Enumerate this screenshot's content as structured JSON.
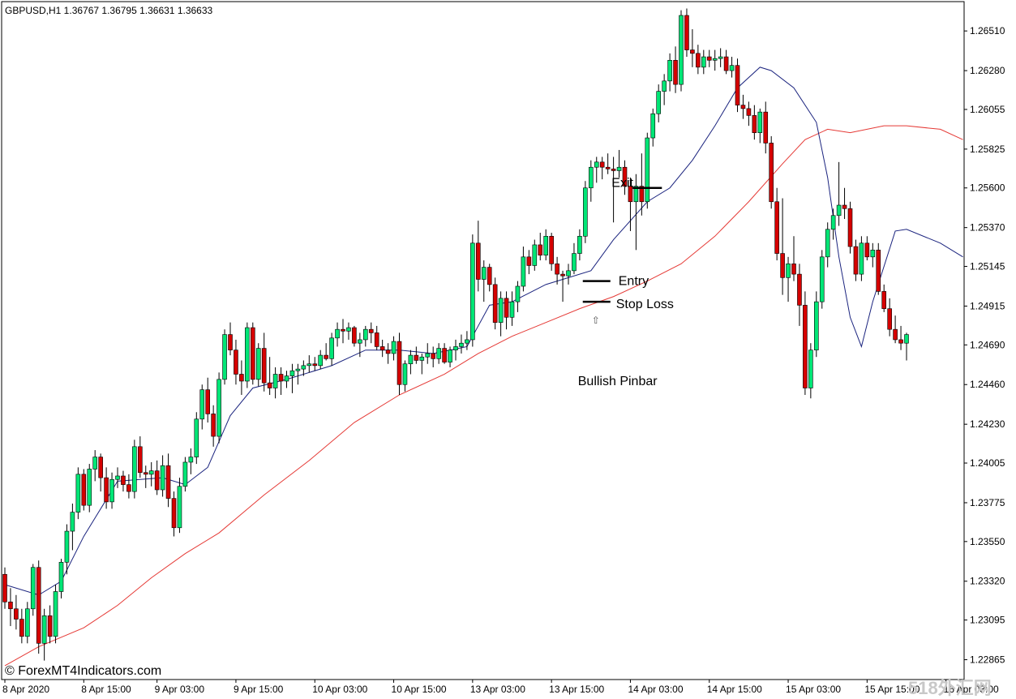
{
  "window": {
    "header": "GBPUSD,H1  1.36767 1.36795 1.36631 1.36633",
    "watermark": "© ForexMT4Indicators.com",
    "corner_watermark": "518外汇网"
  },
  "colors": {
    "background": "#ffffff",
    "bull": "#00e676",
    "bear": "#d50000",
    "wick": "#000000",
    "ma_fast": "#1a237e",
    "ma_slow": "#e53935"
  },
  "chart_data": {
    "type": "candlestick",
    "symbol": "GBPUSD",
    "timeframe": "H1",
    "ylim": [
      1.2275,
      1.2668
    ],
    "y_ticks": [
      "1.26510",
      "1.26280",
      "1.26055",
      "1.25825",
      "1.25600",
      "1.25370",
      "1.25145",
      "1.24915",
      "1.24690",
      "1.24460",
      "1.24230",
      "1.24005",
      "1.23775",
      "1.23550",
      "1.23320",
      "1.23095",
      "1.22865"
    ],
    "x_ticks": [
      {
        "label": "8 Apr 2020",
        "index": 0
      },
      {
        "label": "8 Apr 15:00",
        "index": 14
      },
      {
        "label": "9 Apr 03:00",
        "index": 27
      },
      {
        "label": "9 Apr 15:00",
        "index": 41
      },
      {
        "label": "10 Apr 03:00",
        "index": 55
      },
      {
        "label": "10 Apr 15:00",
        "index": 69
      },
      {
        "label": "13 Apr 03:00",
        "index": 83
      },
      {
        "label": "13 Apr 15:00",
        "index": 97
      },
      {
        "label": "14 Apr 03:00",
        "index": 111
      },
      {
        "label": "14 Apr 15:00",
        "index": 125
      },
      {
        "label": "15 Apr 03:00",
        "index": 139
      },
      {
        "label": "15 Apr 15:00",
        "index": 153
      },
      {
        "label": "16 Apr 03:00",
        "index": 167
      }
    ],
    "candles": [
      [
        1.2336,
        1.234,
        1.2316,
        1.232
      ],
      [
        1.232,
        1.2328,
        1.2306,
        1.2316
      ],
      [
        1.2316,
        1.2324,
        1.2304,
        1.231
      ],
      [
        1.231,
        1.2316,
        1.2296,
        1.23
      ],
      [
        1.23,
        1.232,
        1.2296,
        1.2316
      ],
      [
        1.2316,
        1.2342,
        1.2312,
        1.234
      ],
      [
        1.234,
        1.2344,
        1.229,
        1.2296
      ],
      [
        1.2296,
        1.2316,
        1.2286,
        1.2312
      ],
      [
        1.2312,
        1.2318,
        1.2296,
        1.23
      ],
      [
        1.23,
        1.233,
        1.2296,
        1.2326
      ],
      [
        1.2326,
        1.2345,
        1.2322,
        1.2343
      ],
      [
        1.2343,
        1.2365,
        1.2336,
        1.2361
      ],
      [
        1.2361,
        1.2377,
        1.235,
        1.2372
      ],
      [
        1.2372,
        1.2398,
        1.2368,
        1.2394
      ],
      [
        1.2394,
        1.2397,
        1.2373,
        1.2376
      ],
      [
        1.2376,
        1.24,
        1.2372,
        1.2397
      ],
      [
        1.2397,
        1.2408,
        1.239,
        1.2404
      ],
      [
        1.2404,
        1.2406,
        1.2384,
        1.2392
      ],
      [
        1.2392,
        1.2398,
        1.2374,
        1.2378
      ],
      [
        1.2378,
        1.2395,
        1.2374,
        1.2391
      ],
      [
        1.2391,
        1.2398,
        1.2386,
        1.2393
      ],
      [
        1.2393,
        1.2396,
        1.2384,
        1.2388
      ],
      [
        1.2388,
        1.2394,
        1.238,
        1.2384
      ],
      [
        1.2384,
        1.2414,
        1.238,
        1.241
      ],
      [
        1.241,
        1.2416,
        1.2392,
        1.2395
      ],
      [
        1.2395,
        1.2399,
        1.2386,
        1.2394
      ],
      [
        1.2394,
        1.2401,
        1.2387,
        1.2396
      ],
      [
        1.2396,
        1.2402,
        1.2382,
        1.2385
      ],
      [
        1.2385,
        1.2405,
        1.2381,
        1.2399
      ],
      [
        1.2399,
        1.2406,
        1.2375,
        1.238
      ],
      [
        1.238,
        1.2384,
        1.2358,
        1.2363
      ],
      [
        1.2363,
        1.2392,
        1.236,
        1.2387
      ],
      [
        1.2387,
        1.2404,
        1.2384,
        1.2401
      ],
      [
        1.2401,
        1.2409,
        1.2394,
        1.2404
      ],
      [
        1.2404,
        1.243,
        1.24,
        1.2426
      ],
      [
        1.2426,
        1.2446,
        1.242,
        1.2443
      ],
      [
        1.2443,
        1.245,
        1.2424,
        1.2429
      ],
      [
        1.2429,
        1.2434,
        1.241,
        1.2416
      ],
      [
        1.2416,
        1.2453,
        1.2412,
        1.2449
      ],
      [
        1.2449,
        1.2478,
        1.2446,
        1.2475
      ],
      [
        1.2475,
        1.2482,
        1.2463,
        1.2466
      ],
      [
        1.2466,
        1.2472,
        1.2446,
        1.2452
      ],
      [
        1.2452,
        1.246,
        1.244,
        1.2448
      ],
      [
        1.2448,
        1.2482,
        1.2444,
        1.2479
      ],
      [
        1.2479,
        1.2482,
        1.2446,
        1.2449
      ],
      [
        1.2449,
        1.247,
        1.2445,
        1.2467
      ],
      [
        1.2467,
        1.2476,
        1.2442,
        1.2447
      ],
      [
        1.2447,
        1.2462,
        1.244,
        1.2444
      ],
      [
        1.2444,
        1.2456,
        1.2438,
        1.2452
      ],
      [
        1.2452,
        1.2456,
        1.244,
        1.2448
      ],
      [
        1.2448,
        1.2454,
        1.2444,
        1.2451
      ],
      [
        1.2451,
        1.2458,
        1.2441,
        1.2454
      ],
      [
        1.2454,
        1.2458,
        1.2446,
        1.2455
      ],
      [
        1.2455,
        1.246,
        1.2451,
        1.2457
      ],
      [
        1.2457,
        1.2463,
        1.2453,
        1.2458
      ],
      [
        1.2458,
        1.2462,
        1.2454,
        1.2457
      ],
      [
        1.2457,
        1.2466,
        1.2455,
        1.2463
      ],
      [
        1.2463,
        1.247,
        1.246,
        1.2461
      ],
      [
        1.2461,
        1.2476,
        1.2457,
        1.2473
      ],
      [
        1.2473,
        1.2482,
        1.2468,
        1.2478
      ],
      [
        1.2478,
        1.2484,
        1.247,
        1.2477
      ],
      [
        1.2477,
        1.2482,
        1.2472,
        1.2479
      ],
      [
        1.2479,
        1.248,
        1.2468,
        1.247
      ],
      [
        1.247,
        1.2476,
        1.2462,
        1.2472
      ],
      [
        1.2472,
        1.248,
        1.2468,
        1.2478
      ],
      [
        1.2478,
        1.2482,
        1.247,
        1.2476
      ],
      [
        1.2476,
        1.248,
        1.2466,
        1.2468
      ],
      [
        1.2468,
        1.2472,
        1.2462,
        1.2466
      ],
      [
        1.2466,
        1.247,
        1.2458,
        1.2464
      ],
      [
        1.2464,
        1.2474,
        1.246,
        1.2471
      ],
      [
        1.2471,
        1.2476,
        1.244,
        1.2446
      ],
      [
        1.2446,
        1.246,
        1.2442,
        1.2458
      ],
      [
        1.2458,
        1.2466,
        1.2452,
        1.2463
      ],
      [
        1.2463,
        1.2468,
        1.2458,
        1.246
      ],
      [
        1.246,
        1.2464,
        1.2452,
        1.2462
      ],
      [
        1.2462,
        1.247,
        1.2458,
        1.2464
      ],
      [
        1.2464,
        1.2468,
        1.2456,
        1.2461
      ],
      [
        1.2461,
        1.247,
        1.2458,
        1.2467
      ],
      [
        1.2467,
        1.247,
        1.2458,
        1.2459
      ],
      [
        1.2459,
        1.2468,
        1.2456,
        1.2466
      ],
      [
        1.2466,
        1.2472,
        1.246,
        1.2468
      ],
      [
        1.2468,
        1.2475,
        1.2464,
        1.247
      ],
      [
        1.247,
        1.2477,
        1.2466,
        1.2472
      ],
      [
        1.2472,
        1.2533,
        1.2468,
        1.2528
      ],
      [
        1.2528,
        1.2541,
        1.25,
        1.2507
      ],
      [
        1.2507,
        1.2518,
        1.2494,
        1.2514
      ],
      [
        1.2514,
        1.2516,
        1.25,
        1.2504
      ],
      [
        1.2504,
        1.2508,
        1.2478,
        1.2482
      ],
      [
        1.2482,
        1.25,
        1.2474,
        1.2496
      ],
      [
        1.2496,
        1.25,
        1.2478,
        1.2485
      ],
      [
        1.2485,
        1.25,
        1.248,
        1.2494
      ],
      [
        1.2494,
        1.2506,
        1.2488,
        1.2503
      ],
      [
        1.2503,
        1.2526,
        1.25,
        1.252
      ],
      [
        1.252,
        1.2524,
        1.251,
        1.2515
      ],
      [
        1.2515,
        1.253,
        1.2512,
        1.2527
      ],
      [
        1.2527,
        1.2534,
        1.2518,
        1.2521
      ],
      [
        1.2521,
        1.2536,
        1.2518,
        1.2532
      ],
      [
        1.2532,
        1.2534,
        1.2512,
        1.2516
      ],
      [
        1.2516,
        1.252,
        1.2504,
        1.251
      ],
      [
        1.251,
        1.2512,
        1.2494,
        1.2509
      ],
      [
        1.2509,
        1.2516,
        1.2504,
        1.2512
      ],
      [
        1.2512,
        1.2528,
        1.251,
        1.2522
      ],
      [
        1.2522,
        1.2536,
        1.2518,
        1.2532
      ],
      [
        1.2532,
        1.2564,
        1.2528,
        1.256
      ],
      [
        1.256,
        1.2576,
        1.2552,
        1.2572
      ],
      [
        1.2572,
        1.2578,
        1.2563,
        1.2575
      ],
      [
        1.2575,
        1.2578,
        1.2565,
        1.2572
      ],
      [
        1.2572,
        1.258,
        1.2568,
        1.2571
      ],
      [
        1.2571,
        1.2578,
        1.254,
        1.257
      ],
      [
        1.257,
        1.2582,
        1.2566,
        1.2572
      ],
      [
        1.2572,
        1.2576,
        1.2556,
        1.2561
      ],
      [
        1.2561,
        1.2566,
        1.2535,
        1.2552
      ],
      [
        1.2552,
        1.2568,
        1.2524,
        1.2561
      ],
      [
        1.2561,
        1.258,
        1.2544,
        1.2552
      ],
      [
        1.2552,
        1.2592,
        1.2548,
        1.2589
      ],
      [
        1.2589,
        1.2606,
        1.2584,
        1.2603
      ],
      [
        1.2603,
        1.262,
        1.2598,
        1.2616
      ],
      [
        1.2616,
        1.2626,
        1.2608,
        1.2622
      ],
      [
        1.2622,
        1.2638,
        1.2616,
        1.2634
      ],
      [
        1.2634,
        1.2642,
        1.2615,
        1.262
      ],
      [
        1.262,
        1.2663,
        1.2616,
        1.266
      ],
      [
        1.266,
        1.2664,
        1.2636,
        1.264
      ],
      [
        1.264,
        1.2652,
        1.263,
        1.2638
      ],
      [
        1.2638,
        1.2643,
        1.2626,
        1.263
      ],
      [
        1.263,
        1.264,
        1.2626,
        1.2636
      ],
      [
        1.2636,
        1.264,
        1.263,
        1.2634
      ],
      [
        1.2634,
        1.264,
        1.2628,
        1.2635
      ],
      [
        1.2635,
        1.2641,
        1.263,
        1.2636
      ],
      [
        1.2636,
        1.264,
        1.2626,
        1.2628
      ],
      [
        1.2628,
        1.2636,
        1.2624,
        1.2631
      ],
      [
        1.2631,
        1.2635,
        1.2604,
        1.2608
      ],
      [
        1.2608,
        1.2614,
        1.26,
        1.2606
      ],
      [
        1.2606,
        1.261,
        1.2596,
        1.2602
      ],
      [
        1.2602,
        1.2608,
        1.2588,
        1.2592
      ],
      [
        1.2592,
        1.2606,
        1.2586,
        1.2604
      ],
      [
        1.2604,
        1.261,
        1.258,
        1.2586
      ],
      [
        1.2586,
        1.259,
        1.2548,
        1.2552
      ],
      [
        1.2552,
        1.256,
        1.2518,
        1.2522
      ],
      [
        1.2522,
        1.2554,
        1.2498,
        1.2508
      ],
      [
        1.2508,
        1.252,
        1.2494,
        1.2516
      ],
      [
        1.2516,
        1.2532,
        1.2506,
        1.251
      ],
      [
        1.251,
        1.2516,
        1.248,
        1.2492
      ],
      [
        1.2492,
        1.25,
        1.244,
        1.2444
      ],
      [
        1.2444,
        1.247,
        1.2438,
        1.2466
      ],
      [
        1.2466,
        1.25,
        1.2462,
        1.2494
      ],
      [
        1.2494,
        1.2524,
        1.249,
        1.252
      ],
      [
        1.252,
        1.254,
        1.2514,
        1.2536
      ],
      [
        1.2536,
        1.2548,
        1.253,
        1.2544
      ],
      [
        1.2544,
        1.2575,
        1.2538,
        1.255
      ],
      [
        1.255,
        1.256,
        1.2542,
        1.2548
      ],
      [
        1.2548,
        1.2552,
        1.2522,
        1.2526
      ],
      [
        1.2526,
        1.253,
        1.2506,
        1.251
      ],
      [
        1.251,
        1.2532,
        1.2506,
        1.2528
      ],
      [
        1.2528,
        1.2532,
        1.2518,
        1.252
      ],
      [
        1.252,
        1.2528,
        1.2514,
        1.2524
      ],
      [
        1.2524,
        1.2528,
        1.2498,
        1.25
      ],
      [
        1.25,
        1.2504,
        1.2488,
        1.249
      ],
      [
        1.249,
        1.2496,
        1.2474,
        1.2478
      ],
      [
        1.2478,
        1.2486,
        1.247,
        1.2472
      ],
      [
        1.2472,
        1.248,
        1.2466,
        1.247
      ],
      [
        1.247,
        1.2476,
        1.246,
        1.2475
      ]
    ],
    "ma_fast": [
      [
        0,
        1.233
      ],
      [
        6,
        1.2324
      ],
      [
        10,
        1.2332
      ],
      [
        14,
        1.2358
      ],
      [
        20,
        1.239
      ],
      [
        28,
        1.2392
      ],
      [
        32,
        1.2388
      ],
      [
        36,
        1.2398
      ],
      [
        40,
        1.2428
      ],
      [
        44,
        1.2444
      ],
      [
        50,
        1.2449
      ],
      [
        58,
        1.2457
      ],
      [
        64,
        1.2466
      ],
      [
        70,
        1.2466
      ],
      [
        76,
        1.2464
      ],
      [
        82,
        1.2468
      ],
      [
        86,
        1.2492
      ],
      [
        90,
        1.2494
      ],
      [
        96,
        1.2504
      ],
      [
        100,
        1.2508
      ],
      [
        104,
        1.2512
      ],
      [
        108,
        1.253
      ],
      [
        114,
        1.2552
      ],
      [
        118,
        1.256
      ],
      [
        122,
        1.2576
      ],
      [
        126,
        1.2596
      ],
      [
        130,
        1.2618
      ],
      [
        134,
        1.263
      ],
      [
        136,
        1.2628
      ],
      [
        140,
        1.2618
      ],
      [
        144,
        1.2598
      ],
      [
        146,
        1.2566
      ],
      [
        148,
        1.252
      ],
      [
        150,
        1.2485
      ],
      [
        152,
        1.2468
      ],
      [
        154,
        1.2494
      ],
      [
        158,
        1.2535
      ],
      [
        160,
        1.2536
      ],
      [
        166,
        1.2528
      ],
      [
        170,
        1.252
      ]
    ],
    "ma_slow": [
      [
        0,
        1.2283
      ],
      [
        6,
        1.2294
      ],
      [
        14,
        1.2305
      ],
      [
        20,
        1.2318
      ],
      [
        26,
        1.2334
      ],
      [
        32,
        1.2348
      ],
      [
        38,
        1.236
      ],
      [
        46,
        1.2382
      ],
      [
        54,
        1.2402
      ],
      [
        62,
        1.2424
      ],
      [
        70,
        1.244
      ],
      [
        78,
        1.2452
      ],
      [
        84,
        1.2464
      ],
      [
        90,
        1.2474
      ],
      [
        96,
        1.2482
      ],
      [
        102,
        1.249
      ],
      [
        108,
        1.2497
      ],
      [
        114,
        1.2506
      ],
      [
        120,
        1.2516
      ],
      [
        126,
        1.2532
      ],
      [
        132,
        1.2552
      ],
      [
        138,
        1.2574
      ],
      [
        142,
        1.2588
      ],
      [
        146,
        1.2594
      ],
      [
        150,
        1.2592
      ],
      [
        156,
        1.2596
      ],
      [
        160,
        1.2596
      ],
      [
        166,
        1.2594
      ],
      [
        170,
        1.2588
      ]
    ],
    "annotations": {
      "exit": "Exit",
      "entry": "Entry",
      "stop_loss": "Stop Loss",
      "pattern": "Bullish Pinbar",
      "exit_level": 1.256,
      "entry_level": 1.2506,
      "stop_level": 1.2494,
      "pinbar_index": 105,
      "arrow_glyph": "⇧"
    }
  }
}
